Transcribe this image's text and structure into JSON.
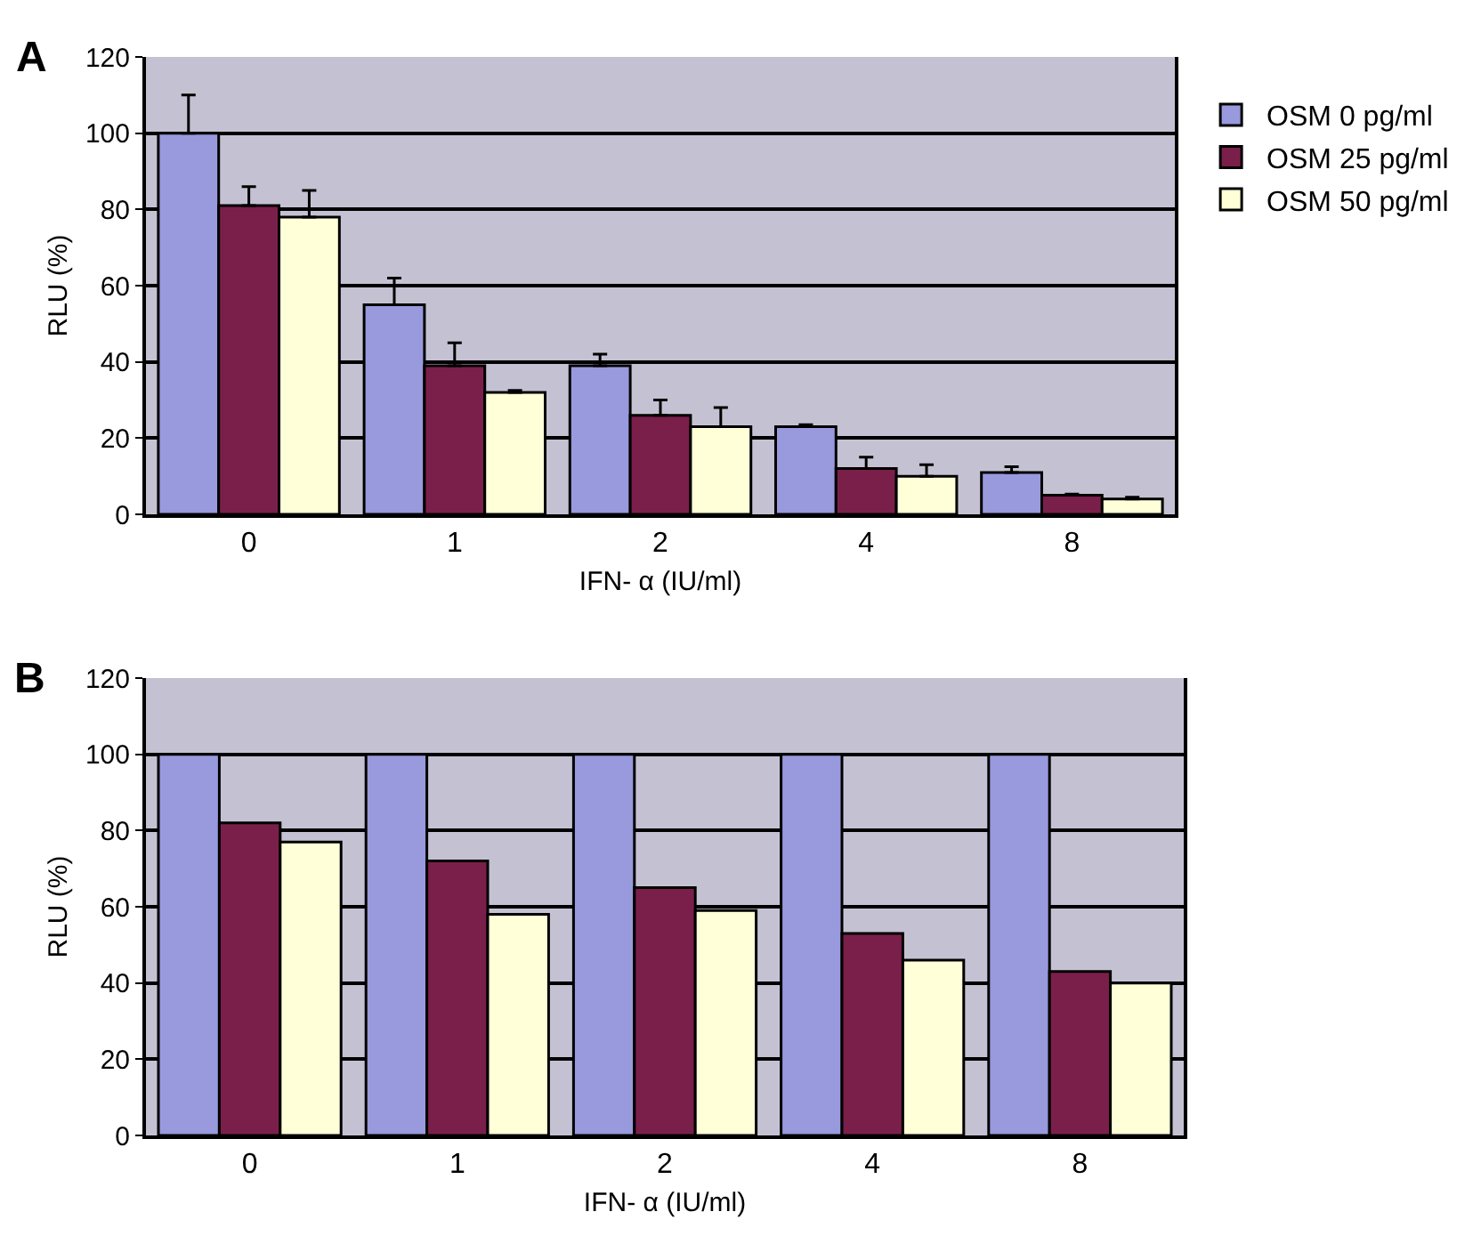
{
  "chart_data": [
    {
      "type": "bar",
      "title": "A",
      "xlabel": "IFN- α (IU/ml)",
      "ylabel": "RLU (%)",
      "categories": [
        "0",
        "1",
        "2",
        "4",
        "8"
      ],
      "ylim": [
        0,
        120
      ],
      "yticks": [
        0,
        20,
        40,
        60,
        80,
        100,
        120
      ],
      "grid": "y",
      "legend": "right",
      "series": [
        {
          "name": "OSM 0 pg/ml",
          "color": "#9999dd",
          "values": [
            100,
            55,
            39,
            23,
            11
          ],
          "errors": [
            [
              100,
              110
            ],
            [
              55,
              62
            ],
            [
              39,
              42
            ],
            [
              23,
              23.5
            ],
            [
              11,
              12.5
            ]
          ]
        },
        {
          "name": "OSM 25 pg/ml",
          "color": "#7a1f4a",
          "values": [
            81,
            39,
            26,
            12,
            5
          ],
          "errors": [
            [
              81,
              86
            ],
            [
              39,
              45
            ],
            [
              26,
              30
            ],
            [
              12,
              15
            ],
            [
              5,
              5.3
            ]
          ]
        },
        {
          "name": "OSM 50 pg/ml",
          "color": "#ffffd8",
          "values": [
            78,
            32,
            23,
            10,
            4
          ],
          "errors": [
            [
              78,
              85
            ],
            [
              32,
              32.5
            ],
            [
              23,
              28
            ],
            [
              10,
              13
            ],
            [
              4,
              4.5
            ]
          ]
        }
      ]
    },
    {
      "type": "bar",
      "title": "B",
      "xlabel": "IFN- α (IU/ml)",
      "ylabel": "RLU (%)",
      "categories": [
        "0",
        "1",
        "2",
        "4",
        "8"
      ],
      "ylim": [
        0,
        120
      ],
      "yticks": [
        0,
        20,
        40,
        60,
        80,
        100,
        120
      ],
      "grid": "y",
      "series": [
        {
          "color": "#9999dd",
          "values": [
            100,
            100,
            100,
            100,
            100
          ]
        },
        {
          "color": "#7a1f4a",
          "values": [
            82,
            72,
            65,
            53,
            43
          ]
        },
        {
          "color": "#ffffd8",
          "values": [
            77,
            58,
            59,
            46,
            40
          ]
        }
      ]
    }
  ]
}
